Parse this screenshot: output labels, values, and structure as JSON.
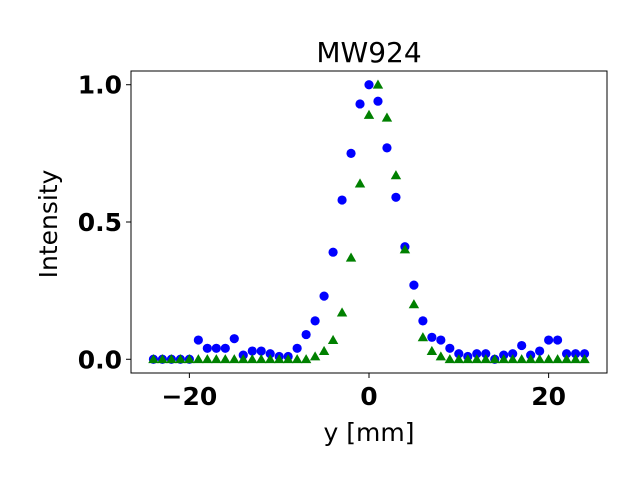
{
  "chart_data": {
    "type": "scatter",
    "title": "MW924",
    "xlabel": "y [mm]",
    "ylabel": "Intensity",
    "xlim": [
      -26.5,
      26.5
    ],
    "ylim": [
      -0.05,
      1.05
    ],
    "xticks": [
      -20,
      0,
      20
    ],
    "xtick_labels": [
      "−20",
      "0",
      "20"
    ],
    "yticks": [
      0.0,
      0.5,
      1.0
    ],
    "ytick_labels": [
      "0.0",
      "0.5",
      "1.0"
    ],
    "grid": false,
    "series": [
      {
        "name": "series-blue-circles",
        "color": "#0000ff",
        "marker": "circle",
        "x": [
          -24,
          -23,
          -22,
          -21,
          -20,
          -19,
          -18,
          -17,
          -16,
          -15,
          -14,
          -13,
          -12,
          -11,
          -10,
          -9,
          -8,
          -7,
          -6,
          -5,
          -4,
          -3,
          -2,
          -1,
          0,
          1,
          2,
          3,
          4,
          5,
          6,
          7,
          8,
          9,
          10,
          11,
          12,
          13,
          14,
          15,
          16,
          17,
          18,
          19,
          20,
          21,
          22,
          23,
          24
        ],
        "y": [
          0.0,
          0.0,
          0.0,
          0.0,
          0.0,
          0.07,
          0.04,
          0.04,
          0.04,
          0.075,
          0.015,
          0.03,
          0.03,
          0.02,
          0.01,
          0.01,
          0.04,
          0.09,
          0.14,
          0.23,
          0.39,
          0.58,
          0.75,
          0.93,
          1.0,
          0.94,
          0.77,
          0.59,
          0.41,
          0.27,
          0.14,
          0.08,
          0.07,
          0.04,
          0.02,
          0.01,
          0.02,
          0.02,
          0.0,
          0.015,
          0.02,
          0.05,
          0.015,
          0.03,
          0.07,
          0.07,
          0.02,
          0.02,
          0.02
        ]
      },
      {
        "name": "series-green-triangles",
        "color": "#008000",
        "marker": "triangle",
        "x": [
          -24,
          -23,
          -22,
          -21,
          -20,
          -19,
          -18,
          -17,
          -16,
          -15,
          -14,
          -13,
          -12,
          -11,
          -10,
          -9,
          -8,
          -7,
          -6,
          -5,
          -4,
          -3,
          -2,
          -1,
          0,
          1,
          2,
          3,
          4,
          5,
          6,
          7,
          8,
          9,
          10,
          11,
          12,
          13,
          14,
          15,
          16,
          17,
          18,
          19,
          20,
          21,
          22,
          23,
          24
        ],
        "y": [
          0.0,
          0.0,
          0.0,
          0.0,
          0.0,
          0.0,
          0.0,
          0.0,
          0.0,
          0.0,
          0.0,
          0.0,
          0.0,
          0.0,
          0.0,
          0.0,
          0.0,
          0.0,
          0.01,
          0.03,
          0.07,
          0.17,
          0.37,
          0.64,
          0.89,
          1.0,
          0.88,
          0.67,
          0.4,
          0.2,
          0.08,
          0.03,
          0.01,
          0.0,
          0.0,
          0.0,
          0.0,
          0.0,
          0.0,
          0.0,
          0.0,
          0.0,
          0.0,
          0.0,
          0.0,
          0.0,
          0.0,
          0.0,
          0.0
        ]
      }
    ]
  }
}
